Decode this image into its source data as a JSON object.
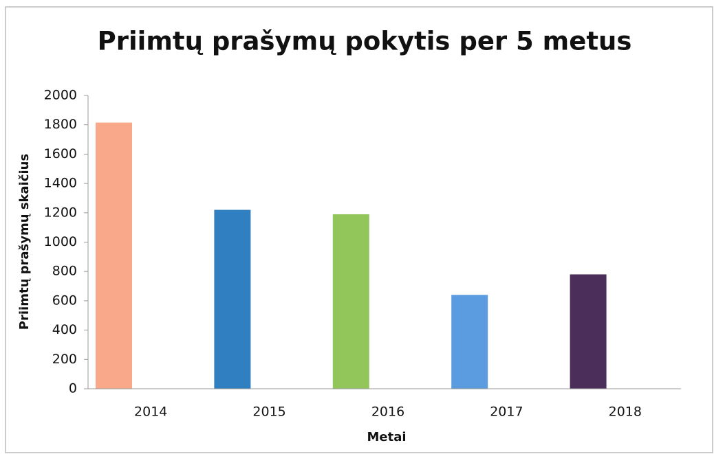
{
  "chart_data": {
    "type": "bar",
    "title": "Priimtų prašymų pokytis per 5 metus",
    "x_label": "Metai",
    "y_label": "Priimtų prašymų skaičius",
    "categories": [
      "2014",
      "2015",
      "2016",
      "2017",
      "2018"
    ],
    "values": [
      1815,
      1220,
      1190,
      640,
      780
    ],
    "colors": [
      "#f9a98a",
      "#2f7fc1",
      "#92c55a",
      "#5b9be0",
      "#4b2e5a"
    ],
    "ylim": [
      0,
      2000
    ],
    "yticks": [
      0,
      200,
      400,
      600,
      800,
      1000,
      1200,
      1400,
      1600,
      1800,
      2000
    ],
    "grid": false
  }
}
